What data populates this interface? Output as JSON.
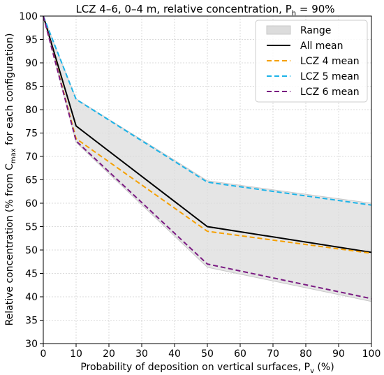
{
  "chart_data": {
    "type": "line",
    "title": "LCZ 4–6, 0–4 m, relative concentration, P",
    "title_sub": "h",
    "title_tail": " = 90%",
    "xlabel": "Probability of deposition on vertical surfaces, P",
    "xlabel_sub": "v",
    "xlabel_tail": " (%)",
    "ylabel": "Relative concentration (% from C",
    "ylabel_sub": "max",
    "ylabel_tail": " for each configuration)",
    "xlim": [
      0,
      100
    ],
    "ylim": [
      30,
      100
    ],
    "x_ticks": [
      0,
      10,
      20,
      30,
      40,
      50,
      60,
      70,
      80,
      90,
      100
    ],
    "y_ticks": [
      30,
      35,
      40,
      45,
      50,
      55,
      60,
      65,
      70,
      75,
      80,
      85,
      90,
      95,
      100
    ],
    "grid": true,
    "legend_position": "top-right",
    "x": [
      0,
      10,
      50,
      100
    ],
    "range": {
      "name": "Range",
      "upper": [
        100,
        82.3,
        64.8,
        60.0
      ],
      "lower": [
        100,
        73.0,
        46.3,
        39.0
      ],
      "color": "#dcdcdc"
    },
    "series": [
      {
        "name": "All mean",
        "values": [
          100,
          76.5,
          55.0,
          49.5
        ],
        "color": "#000000",
        "dashed": false
      },
      {
        "name": "LCZ 4 mean",
        "values": [
          100,
          73.8,
          54.0,
          49.3
        ],
        "color": "#f5a000",
        "dashed": true
      },
      {
        "name": "LCZ 5 mean",
        "values": [
          100,
          82.2,
          64.5,
          59.6
        ],
        "color": "#1cb3e8",
        "dashed": true
      },
      {
        "name": "LCZ 6 mean",
        "values": [
          100,
          73.3,
          47.0,
          39.6
        ],
        "color": "#7a1a82",
        "dashed": true
      }
    ]
  }
}
